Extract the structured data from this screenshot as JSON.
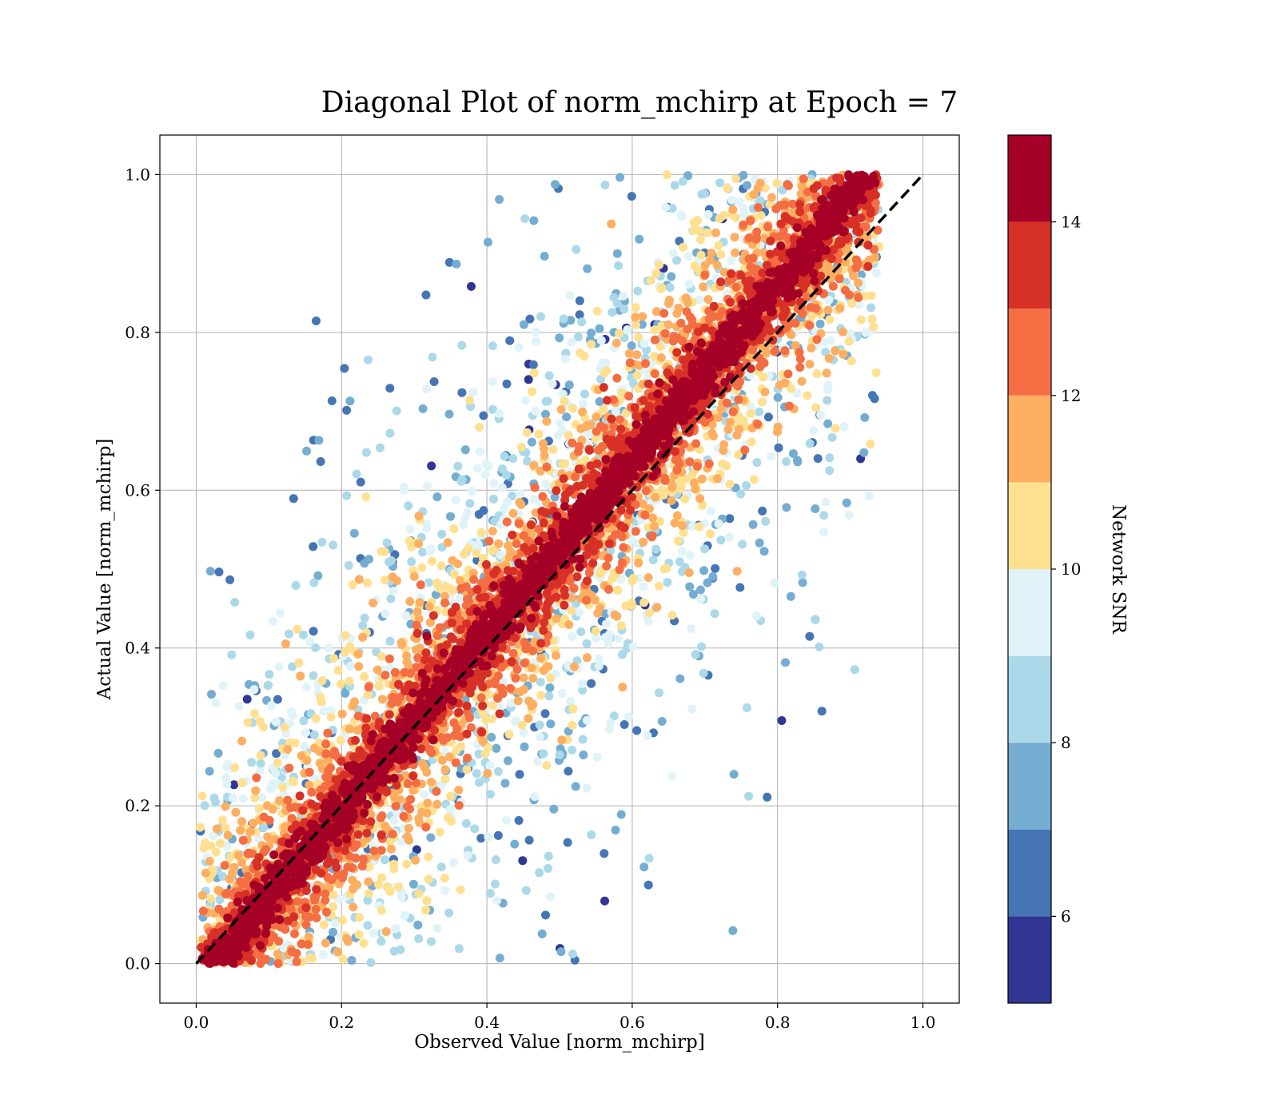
{
  "chart_data": {
    "type": "scatter",
    "title": "Diagonal Plot of norm_mchirp at Epoch = 7",
    "xlabel": "Observed Value [norm_mchirp]",
    "ylabel": "Actual Value [norm_mchirp]",
    "xlim": [
      -0.05,
      1.05
    ],
    "ylim": [
      -0.05,
      1.05
    ],
    "x_ticks": [
      0.0,
      0.2,
      0.4,
      0.6,
      0.8,
      1.0
    ],
    "x_tick_labels": [
      "0.0",
      "0.2",
      "0.4",
      "0.6",
      "0.8",
      "1.0"
    ],
    "y_ticks": [
      0.0,
      0.2,
      0.4,
      0.6,
      0.8,
      1.0
    ],
    "y_tick_labels": [
      "0.0",
      "0.2",
      "0.4",
      "0.6",
      "0.8",
      "1.0"
    ],
    "grid": true,
    "reference_line": {
      "x": [
        0.0,
        1.0
      ],
      "y": [
        0.0,
        1.0
      ],
      "style": "dashed",
      "color": "#000000"
    },
    "colorbar": {
      "label": "Network SNR",
      "min": 5,
      "max": 15,
      "ticks": [
        6,
        8,
        10,
        12,
        14
      ],
      "tick_labels": [
        "6",
        "8",
        "10",
        "12",
        "14"
      ],
      "colors": [
        "#313695",
        "#4575b4",
        "#74add1",
        "#abd9e9",
        "#e0f3f8",
        "#fee090",
        "#fdae61",
        "#f46d43",
        "#d73027",
        "#a50026"
      ]
    },
    "point_color_by": "Network SNR",
    "scatter_bands": [
      {
        "snr": 15,
        "color": "#a50026",
        "region": "close to diagonal (|x - y| < ~0.12)"
      },
      {
        "snr": 13,
        "color": "#d73027",
        "region": "adjacent to diagonal band"
      },
      {
        "snr": 11,
        "color": "#fdae61",
        "region": "intermediate offset"
      },
      {
        "snr": 9,
        "color": "#abd9e9",
        "region": "wide offset"
      },
      {
        "snr": 6,
        "color": "#313695",
        "region": "far from diagonal"
      }
    ]
  }
}
